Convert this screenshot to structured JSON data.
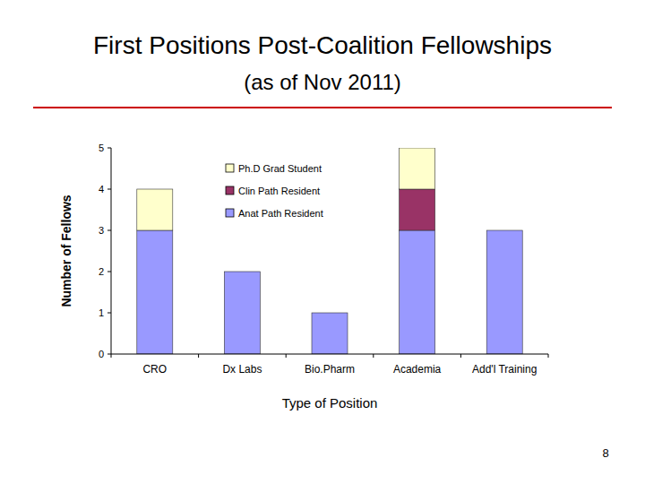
{
  "chart_data": {
    "type": "bar",
    "stacked": true,
    "title": "First Positions Post-Coalition Fellowships",
    "subtitle": "(as of Nov 2011)",
    "x_label": "Type of Position",
    "y_label": "Number of Fellows",
    "categories": [
      "CRO",
      "Dx Labs",
      "Bio.Pharm",
      "Academia",
      "Add'l Training"
    ],
    "series": [
      {
        "name": "Anat Path Resident",
        "color": "#9999ff",
        "values": [
          3,
          2,
          1,
          3,
          3
        ]
      },
      {
        "name": "Clin Path Resident",
        "color": "#993366",
        "values": [
          0,
          0,
          0,
          1,
          0
        ]
      },
      {
        "name": "Ph.D Grad Student",
        "color": "#ffffcc",
        "values": [
          1,
          0,
          0,
          1,
          0
        ]
      }
    ],
    "ylim": [
      0,
      5
    ],
    "yticks": [
      0,
      1,
      2,
      3,
      4,
      5
    ],
    "grid": false,
    "legend": "top"
  },
  "page_number": "8"
}
